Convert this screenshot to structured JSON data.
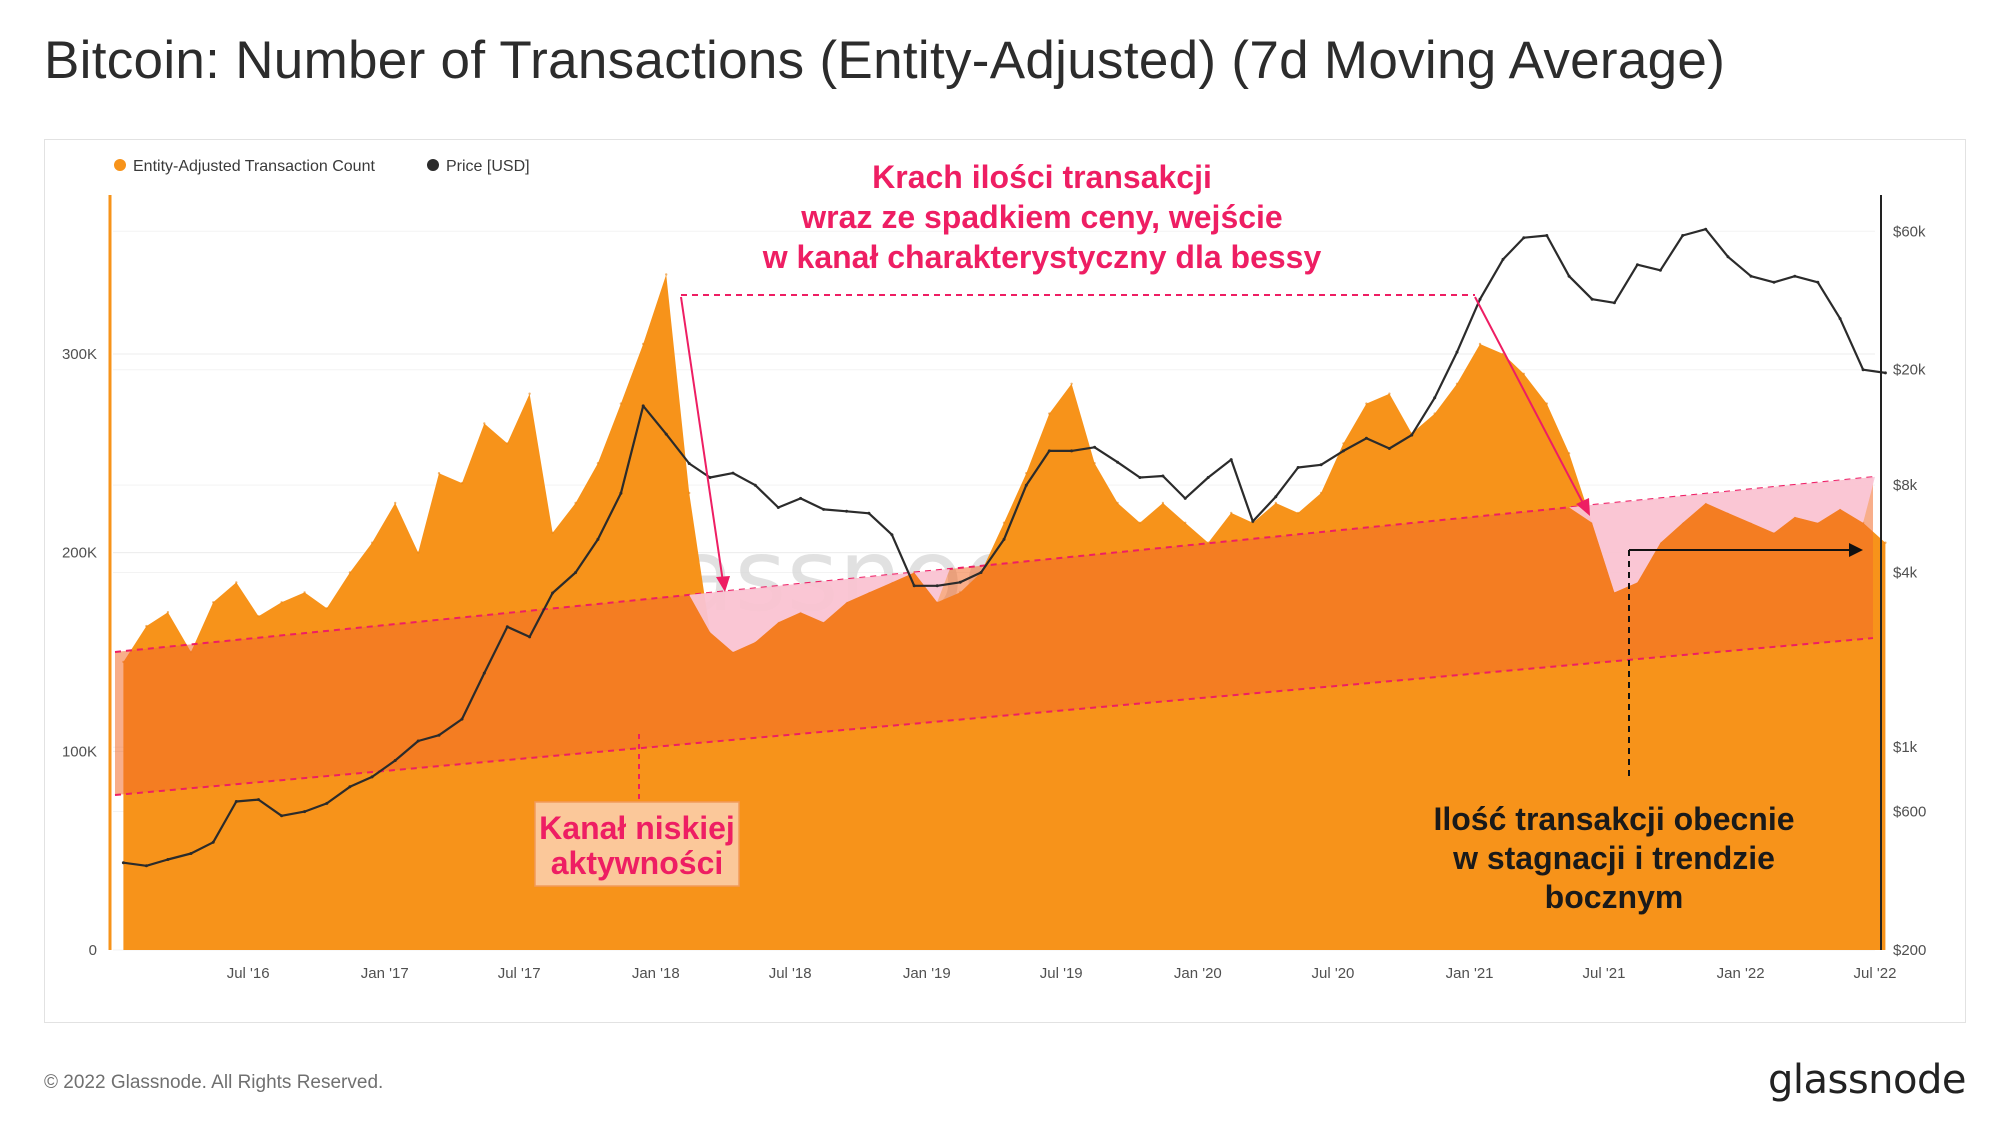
{
  "title": "Bitcoin: Number of Transactions (Entity-Adjusted) (7d Moving Average)",
  "footer": {
    "copyright": "© 2022 Glassnode. All Rights Reserved.",
    "logo": "glassnode"
  },
  "watermark": "glassnode",
  "colors": {
    "tx": "#f7931a",
    "tx_fill": "#f7931a",
    "price": "#2b2b2b",
    "accent": "#ee1e63",
    "channel_fill": "#f26b2a",
    "pink_fill": "#f9c9dc"
  },
  "chart_data": {
    "type": "area",
    "legend": [
      {
        "name": "Entity-Adjusted Transaction Count",
        "color": "#f7931a"
      },
      {
        "name": "Price [USD]",
        "color": "#2b2b2b"
      }
    ],
    "legend_position": "top-left",
    "x_ticks": [
      "Jul '16",
      "Jan '17",
      "Jul '17",
      "Jan '18",
      "Jul '18",
      "Jan '19",
      "Jul '19",
      "Jan '20",
      "Jul '20",
      "Jan '21",
      "Jul '21",
      "Jan '22",
      "Jul '22"
    ],
    "y_left_ticks": [
      "0",
      "100K",
      "200K",
      "300K"
    ],
    "y_left_lim": [
      0,
      380000
    ],
    "y_right_ticks": [
      "$200",
      "$600",
      "$1k",
      "$4k",
      "$8k",
      "$20k",
      "$60k"
    ],
    "y_right_scale": "log",
    "y_right_lim": [
      200,
      80000
    ],
    "grid": true,
    "series": [
      {
        "name": "Entity-Adjusted Transaction Count",
        "x": [
          "2016-01-15",
          "2016-02-15",
          "2016-03-15",
          "2016-04-15",
          "2016-05-15",
          "2016-06-15",
          "2016-07-15",
          "2016-08-15",
          "2016-09-15",
          "2016-10-15",
          "2016-11-15",
          "2016-12-15",
          "2017-01-15",
          "2017-02-15",
          "2017-03-15",
          "2017-04-15",
          "2017-05-15",
          "2017-06-15",
          "2017-07-15",
          "2017-08-15",
          "2017-09-15",
          "2017-10-15",
          "2017-11-15",
          "2017-12-15",
          "2018-01-15",
          "2018-02-15",
          "2018-03-15",
          "2018-04-15",
          "2018-05-15",
          "2018-06-15",
          "2018-07-15",
          "2018-08-15",
          "2018-09-15",
          "2018-10-15",
          "2018-11-15",
          "2018-12-15",
          "2019-01-15",
          "2019-02-15",
          "2019-03-15",
          "2019-04-15",
          "2019-05-15",
          "2019-06-15",
          "2019-07-15",
          "2019-08-15",
          "2019-09-15",
          "2019-10-15",
          "2019-11-15",
          "2019-12-15",
          "2020-01-15",
          "2020-02-15",
          "2020-03-15",
          "2020-04-15",
          "2020-05-15",
          "2020-06-15",
          "2020-07-15",
          "2020-08-15",
          "2020-09-15",
          "2020-10-15",
          "2020-11-15",
          "2020-12-15",
          "2021-01-15",
          "2021-02-15",
          "2021-03-15",
          "2021-04-15",
          "2021-05-15",
          "2021-06-15",
          "2021-07-15",
          "2021-08-15",
          "2021-09-15",
          "2021-10-15",
          "2021-11-15",
          "2021-12-15",
          "2022-01-15",
          "2022-02-15",
          "2022-03-15",
          "2022-04-15",
          "2022-05-15",
          "2022-06-15",
          "2022-07-15"
        ],
        "values": [
          145000,
          163000,
          170000,
          150000,
          175000,
          185000,
          168000,
          175000,
          180000,
          172000,
          190000,
          205000,
          225000,
          200000,
          240000,
          235000,
          265000,
          255000,
          280000,
          210000,
          225000,
          245000,
          275000,
          305000,
          340000,
          230000,
          160000,
          150000,
          155000,
          165000,
          170000,
          165000,
          175000,
          180000,
          185000,
          190000,
          175000,
          180000,
          190000,
          215000,
          240000,
          270000,
          285000,
          245000,
          225000,
          215000,
          225000,
          215000,
          205000,
          220000,
          215000,
          225000,
          220000,
          230000,
          255000,
          275000,
          280000,
          260000,
          270000,
          285000,
          305000,
          300000,
          290000,
          275000,
          250000,
          215000,
          180000,
          185000,
          205000,
          215000,
          225000,
          220000,
          215000,
          210000,
          218000,
          215000,
          222000,
          215000,
          205000
        ]
      },
      {
        "name": "Price [USD]",
        "x": [
          "2016-01-15",
          "2016-02-15",
          "2016-03-15",
          "2016-04-15",
          "2016-05-15",
          "2016-06-15",
          "2016-07-15",
          "2016-08-15",
          "2016-09-15",
          "2016-10-15",
          "2016-11-15",
          "2016-12-15",
          "2017-01-15",
          "2017-02-15",
          "2017-03-15",
          "2017-04-15",
          "2017-05-15",
          "2017-06-15",
          "2017-07-15",
          "2017-08-15",
          "2017-09-15",
          "2017-10-15",
          "2017-11-15",
          "2017-12-15",
          "2018-01-15",
          "2018-02-15",
          "2018-03-15",
          "2018-04-15",
          "2018-05-15",
          "2018-06-15",
          "2018-07-15",
          "2018-08-15",
          "2018-09-15",
          "2018-10-15",
          "2018-11-15",
          "2018-12-15",
          "2019-01-15",
          "2019-02-15",
          "2019-03-15",
          "2019-04-15",
          "2019-05-15",
          "2019-06-15",
          "2019-07-15",
          "2019-08-15",
          "2019-09-15",
          "2019-10-15",
          "2019-11-15",
          "2019-12-15",
          "2020-01-15",
          "2020-02-15",
          "2020-03-15",
          "2020-04-15",
          "2020-05-15",
          "2020-06-15",
          "2020-07-15",
          "2020-08-15",
          "2020-09-15",
          "2020-10-15",
          "2020-11-15",
          "2020-12-15",
          "2021-01-15",
          "2021-02-15",
          "2021-03-15",
          "2021-04-15",
          "2021-05-15",
          "2021-06-15",
          "2021-07-15",
          "2021-08-15",
          "2021-09-15",
          "2021-10-15",
          "2021-11-15",
          "2021-12-15",
          "2022-01-15",
          "2022-02-15",
          "2022-03-15",
          "2022-04-15",
          "2022-05-15",
          "2022-06-15",
          "2022-07-15"
        ],
        "values": [
          400,
          390,
          410,
          430,
          470,
          650,
          660,
          580,
          600,
          640,
          730,
          790,
          900,
          1050,
          1100,
          1250,
          1800,
          2600,
          2400,
          3400,
          4000,
          5200,
          7500,
          15000,
          12000,
          9500,
          8500,
          8800,
          8000,
          6700,
          7200,
          6600,
          6500,
          6400,
          5400,
          3600,
          3600,
          3700,
          4000,
          5200,
          8000,
          10500,
          10500,
          10800,
          9600,
          8500,
          8600,
          7200,
          8500,
          9800,
          6000,
          7300,
          9200,
          9400,
          10500,
          11600,
          10700,
          11900,
          16000,
          23000,
          35000,
          48000,
          57000,
          58000,
          42000,
          35000,
          34000,
          46000,
          44000,
          58000,
          61000,
          49000,
          42000,
          40000,
          42000,
          40000,
          30000,
          20000,
          19500
        ]
      }
    ],
    "annotations": [
      {
        "text_lines": [
          "Krach ilości transakcji",
          "wraz ze spadkiem ceny, wejście",
          "w kanał charakterystyczny dla bessy"
        ],
        "color": "#ee1e63"
      },
      {
        "text_lines": [
          "Kanał niskiej",
          "aktywności"
        ],
        "color": "#ee1e63",
        "boxed": true
      },
      {
        "text_lines": [
          "Ilość transakcji obecnie",
          "w stagnacji i trendzie",
          "bocznym"
        ],
        "color": "#1a1a1a"
      }
    ]
  }
}
